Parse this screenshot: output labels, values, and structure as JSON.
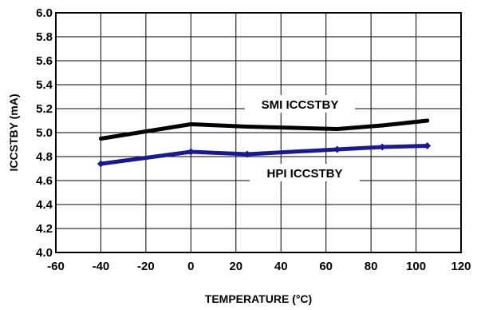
{
  "chart_data": {
    "type": "line",
    "title": "",
    "xlabel": "TEMPERATURE (°C)",
    "ylabel": "ICCSTBY (mA)",
    "xlim": [
      -60,
      120
    ],
    "ylim": [
      4.0,
      6.0
    ],
    "xticks": [
      "-60",
      "-40",
      "-20",
      "0",
      "20",
      "40",
      "60",
      "80",
      "100",
      "120"
    ],
    "yticks": [
      "4.0",
      "4.2",
      "4.4",
      "4.6",
      "4.8",
      "5.0",
      "5.2",
      "5.4",
      "5.6",
      "5.8",
      "6.0"
    ],
    "grid": true,
    "series": [
      {
        "name": "SMI ICCSTBY",
        "color": "#000000",
        "x": [
          -40,
          -20,
          0,
          25,
          65,
          85,
          105
        ],
        "y": [
          4.95,
          5.01,
          5.07,
          5.05,
          5.03,
          5.06,
          5.1
        ]
      },
      {
        "name": "HPI ICCSTBY",
        "color": "#1a1a8c",
        "x": [
          -40,
          0,
          25,
          65,
          85,
          105
        ],
        "y": [
          4.74,
          4.84,
          4.82,
          4.86,
          4.88,
          4.89
        ],
        "markers": true
      }
    ]
  }
}
